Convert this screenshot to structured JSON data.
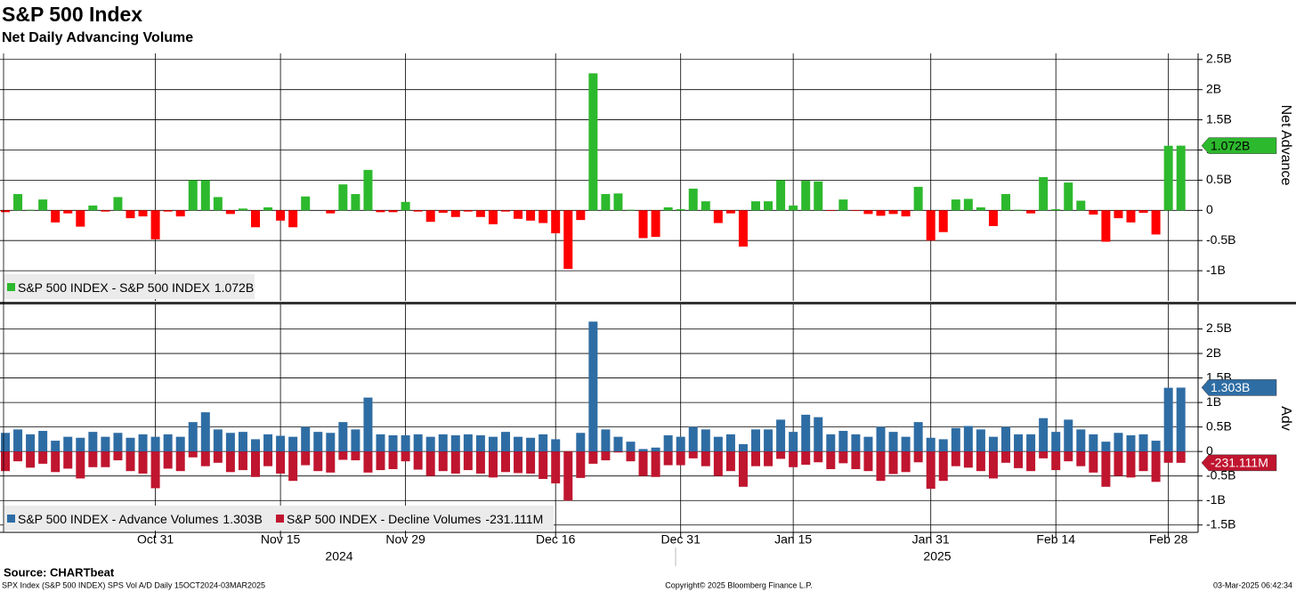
{
  "title": "S&P 500 Index",
  "subtitle": "Net Daily Advancing Volume",
  "year_labels": [
    "2024",
    "2025"
  ],
  "footer": {
    "source": "Source: CHARTbeat",
    "description": "SPX Index (S&P 500 INDEX) SPS Vol A/D  Daily 15OCT2024-03MAR2025",
    "copyright": "Copyright© 2025 Bloomberg Finance L.P.",
    "timestamp": "03-Mar-2025 06:42:34"
  },
  "chart_data": [
    {
      "type": "bar",
      "y_axis_label": "Net Advance",
      "grid": true,
      "ylim": [
        -1.5,
        2.6
      ],
      "yticks": [
        {
          "value": 2.5,
          "label": "2.5B"
        },
        {
          "value": 2,
          "label": "2B"
        },
        {
          "value": 1.5,
          "label": "1.5B"
        },
        {
          "value": 1,
          "label": "1B"
        },
        {
          "value": 0.5,
          "label": "0.5B"
        },
        0,
        {
          "value": -0.5,
          "label": "-0.5B"
        },
        {
          "value": -1,
          "label": "-1B"
        }
      ],
      "series": [
        {
          "name": "S&P 500 INDEX - S&P 500 INDEX",
          "last_label": "1.072B",
          "color": "#2db92d",
          "negative_color": "#ff0000",
          "values": [
            -0.03,
            0.27,
            0.01,
            0.18,
            -0.2,
            -0.05,
            -0.27,
            0.08,
            -0.02,
            0.22,
            -0.13,
            -0.1,
            -0.48,
            -0.02,
            -0.1,
            0.5,
            0.5,
            0.22,
            -0.06,
            0.03,
            -0.28,
            0.05,
            -0.17,
            -0.28,
            0.23,
            0.0,
            -0.05,
            0.43,
            0.27,
            0.67,
            -0.03,
            -0.03,
            0.14,
            -0.02,
            -0.19,
            -0.04,
            -0.11,
            -0.02,
            -0.11,
            -0.23,
            -0.02,
            -0.14,
            -0.17,
            -0.21,
            -0.38,
            -0.97,
            -0.16,
            2.27,
            0.27,
            0.28,
            0.01,
            -0.46,
            -0.44,
            0.05,
            0.02,
            0.36,
            0.15,
            -0.21,
            -0.05,
            -0.6,
            0.15,
            0.15,
            0.5,
            0.08,
            0.49,
            0.48,
            -0.01,
            0.18,
            -0.01,
            -0.06,
            -0.09,
            -0.06,
            -0.1,
            0.39,
            -0.5,
            -0.36,
            0.18,
            0.19,
            0.05,
            -0.26,
            0.27,
            0.01,
            -0.05,
            0.55,
            0.02,
            0.46,
            0.16,
            -0.07,
            -0.52,
            -0.13,
            -0.2,
            -0.04,
            -0.4,
            1.07,
            1.072
          ]
        }
      ]
    },
    {
      "type": "bar",
      "y_axis_label": "Adv",
      "grid": true,
      "ylim": [
        -1.65,
        3.0
      ],
      "yticks": [
        {
          "value": 2.5,
          "label": "2.5B"
        },
        {
          "value": 2,
          "label": "2B"
        },
        {
          "value": 1.5,
          "label": "1.5B"
        },
        {
          "value": 1,
          "label": "1B"
        },
        {
          "value": 0.5,
          "label": "0.5B"
        },
        0,
        {
          "value": -0.5,
          "label": "-0.5B"
        },
        {
          "value": -1,
          "label": "-1B"
        },
        {
          "value": -1.5,
          "label": "-1.5B"
        }
      ],
      "categories": [
        null,
        null,
        null,
        null,
        null,
        null,
        null,
        null,
        null,
        null,
        null,
        null,
        "Oct 31",
        null,
        null,
        null,
        null,
        null,
        null,
        null,
        null,
        null,
        "Nov 15",
        null,
        null,
        null,
        null,
        null,
        null,
        null,
        null,
        null,
        "Nov 29",
        null,
        null,
        null,
        null,
        null,
        null,
        null,
        null,
        null,
        null,
        null,
        "Dec 16",
        null,
        null,
        null,
        null,
        null,
        null,
        null,
        null,
        null,
        "Dec 31",
        null,
        null,
        null,
        null,
        null,
        null,
        null,
        null,
        "Jan 15",
        null,
        null,
        null,
        null,
        null,
        null,
        null,
        null,
        null,
        null,
        "Jan 31",
        null,
        null,
        null,
        null,
        null,
        null,
        null,
        null,
        null,
        "Feb 14",
        null,
        null,
        null,
        null,
        null,
        null,
        null,
        null,
        "Feb 28",
        null
      ],
      "series": [
        {
          "name": "S&P 500 INDEX - Advance Volumes",
          "last_label": "1.303B",
          "color": "#2e6da4",
          "values": [
            0.38,
            0.45,
            0.35,
            0.42,
            0.22,
            0.3,
            0.28,
            0.4,
            0.3,
            0.38,
            0.28,
            0.35,
            0.3,
            0.35,
            0.3,
            0.6,
            0.8,
            0.45,
            0.38,
            0.4,
            0.25,
            0.35,
            0.32,
            0.3,
            0.5,
            0.4,
            0.38,
            0.6,
            0.45,
            1.1,
            0.35,
            0.33,
            0.33,
            0.35,
            0.3,
            0.35,
            0.33,
            0.35,
            0.33,
            0.3,
            0.4,
            0.3,
            0.28,
            0.35,
            0.25,
            0.0,
            0.38,
            2.65,
            0.45,
            0.3,
            0.2,
            0.05,
            0.08,
            0.33,
            0.3,
            0.5,
            0.45,
            0.3,
            0.35,
            0.15,
            0.45,
            0.45,
            0.65,
            0.4,
            0.75,
            0.7,
            0.35,
            0.42,
            0.35,
            0.3,
            0.5,
            0.4,
            0.3,
            0.6,
            0.28,
            0.25,
            0.48,
            0.52,
            0.45,
            0.3,
            0.5,
            0.35,
            0.35,
            0.68,
            0.4,
            0.65,
            0.45,
            0.35,
            0.2,
            0.38,
            0.33,
            0.35,
            0.22,
            1.3,
            1.303
          ]
        },
        {
          "name": "S&P 500 INDEX - Decline Volumes",
          "last_label": "-231.111M",
          "color": "#c0152f",
          "values": [
            -0.4,
            -0.2,
            -0.33,
            -0.25,
            -0.42,
            -0.35,
            -0.55,
            -0.32,
            -0.32,
            -0.18,
            -0.4,
            -0.45,
            -0.75,
            -0.35,
            -0.4,
            -0.12,
            -0.3,
            -0.23,
            -0.42,
            -0.38,
            -0.52,
            -0.3,
            -0.45,
            -0.6,
            -0.28,
            -0.4,
            -0.43,
            -0.17,
            -0.18,
            -0.43,
            -0.38,
            -0.36,
            -0.2,
            -0.37,
            -0.5,
            -0.4,
            -0.45,
            -0.38,
            -0.45,
            -0.53,
            -0.42,
            -0.44,
            -0.45,
            -0.56,
            -0.65,
            -1.0,
            -0.54,
            -0.25,
            -0.18,
            -0.02,
            -0.2,
            -0.5,
            -0.52,
            -0.28,
            -0.28,
            -0.14,
            -0.3,
            -0.5,
            -0.4,
            -0.72,
            -0.3,
            -0.3,
            -0.15,
            -0.32,
            -0.27,
            -0.22,
            -0.36,
            -0.24,
            -0.36,
            -0.4,
            -0.6,
            -0.46,
            -0.42,
            -0.22,
            -0.76,
            -0.6,
            -0.3,
            -0.33,
            -0.4,
            -0.55,
            -0.23,
            -0.34,
            -0.4,
            -0.14,
            -0.38,
            -0.2,
            -0.3,
            -0.43,
            -0.72,
            -0.5,
            -0.53,
            -0.4,
            -0.62,
            -0.23,
            -0.231111
          ]
        }
      ]
    }
  ]
}
